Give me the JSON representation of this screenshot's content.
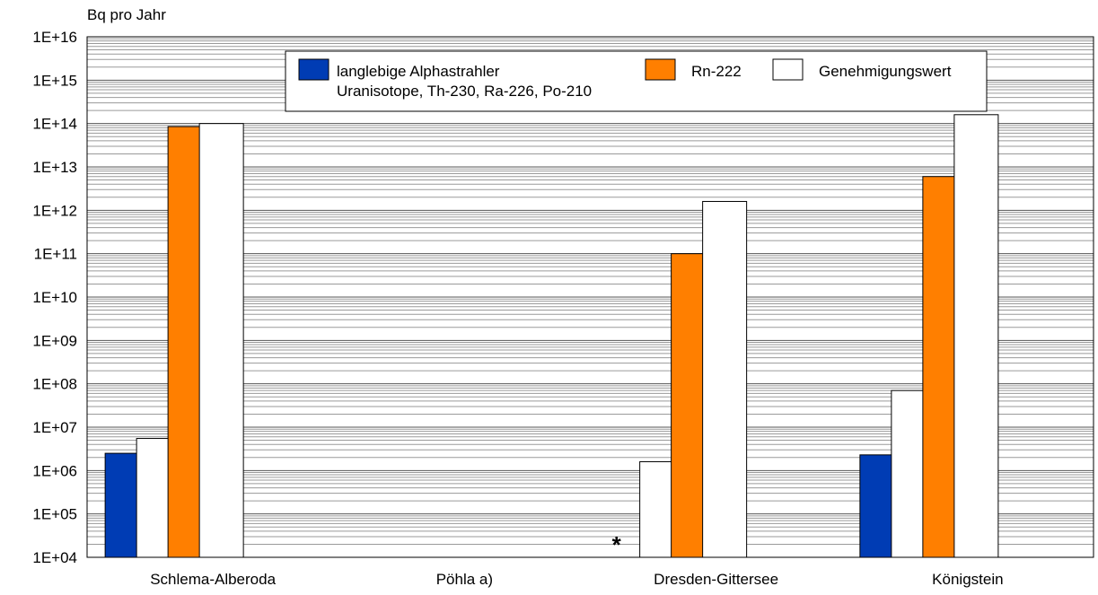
{
  "chart_data": {
    "type": "bar",
    "ylabel": "Bq pro Jahr",
    "yscale": "log",
    "ylim": [
      10000,
      1e+16
    ],
    "yticks": [
      {
        "value": 10000.0,
        "label": "1E+04"
      },
      {
        "value": 100000.0,
        "label": "1E+05"
      },
      {
        "value": 1000000.0,
        "label": "1E+06"
      },
      {
        "value": 10000000.0,
        "label": "1E+07"
      },
      {
        "value": 100000000.0,
        "label": "1E+08"
      },
      {
        "value": 1000000000.0,
        "label": "1E+09"
      },
      {
        "value": 10000000000.0,
        "label": "1E+10"
      },
      {
        "value": 100000000000.0,
        "label": "1E+11"
      },
      {
        "value": 1000000000000.0,
        "label": "1E+12"
      },
      {
        "value": 10000000000000.0,
        "label": "1E+13"
      },
      {
        "value": 100000000000000.0,
        "label": "1E+14"
      },
      {
        "value": 1000000000000000.0,
        "label": "1E+15"
      },
      {
        "value": 1e+16,
        "label": "1E+16"
      }
    ],
    "grid": true,
    "legend_position": "top",
    "categories": [
      "Schlema-Alberoda",
      "Pöhla a)",
      "Dresden-Gittersee",
      "Königstein"
    ],
    "legend": [
      {
        "label_lines": [
          "langlebige Alphastrahler",
          "Uranisotope, Th-230, Ra-226, Po-210"
        ],
        "color": "#003cb4"
      },
      {
        "label_lines": [
          "Rn-222"
        ],
        "color": "#ff7f00"
      },
      {
        "label_lines": [
          "Genehmigungswert"
        ],
        "color": "#ffffff"
      }
    ],
    "bars": [
      {
        "category": "Schlema-Alberoda",
        "kind": "alpha",
        "value": 2500000.0,
        "color": "#003cb4"
      },
      {
        "category": "Schlema-Alberoda",
        "kind": "limit-alpha",
        "value": 5500000.0,
        "color": "#ffffff"
      },
      {
        "category": "Schlema-Alberoda",
        "kind": "rn222",
        "value": 85000000000000.0,
        "color": "#ff7f00"
      },
      {
        "category": "Schlema-Alberoda",
        "kind": "limit-rn222",
        "value": 100000000000000.0,
        "color": "#ffffff"
      },
      {
        "category": "Dresden-Gittersee",
        "kind": "limit-alpha",
        "value": 1600000.0,
        "color": "#ffffff"
      },
      {
        "category": "Dresden-Gittersee",
        "kind": "rn222",
        "value": 100000000000.0,
        "color": "#ff7f00"
      },
      {
        "category": "Dresden-Gittersee",
        "kind": "limit-rn222",
        "value": 1600000000000.0,
        "color": "#ffffff"
      },
      {
        "category": "Königstein",
        "kind": "alpha",
        "value": 2300000.0,
        "color": "#003cb4"
      },
      {
        "category": "Königstein",
        "kind": "limit-alpha",
        "value": 70000000.0,
        "color": "#ffffff"
      },
      {
        "category": "Königstein",
        "kind": "rn222",
        "value": 6000000000000.0,
        "color": "#ff7f00"
      },
      {
        "category": "Königstein",
        "kind": "limit-rn222",
        "value": 160000000000000.0,
        "color": "#ffffff"
      }
    ],
    "annotations": [
      {
        "text": "*",
        "category": "Dresden-Gittersee"
      }
    ]
  }
}
